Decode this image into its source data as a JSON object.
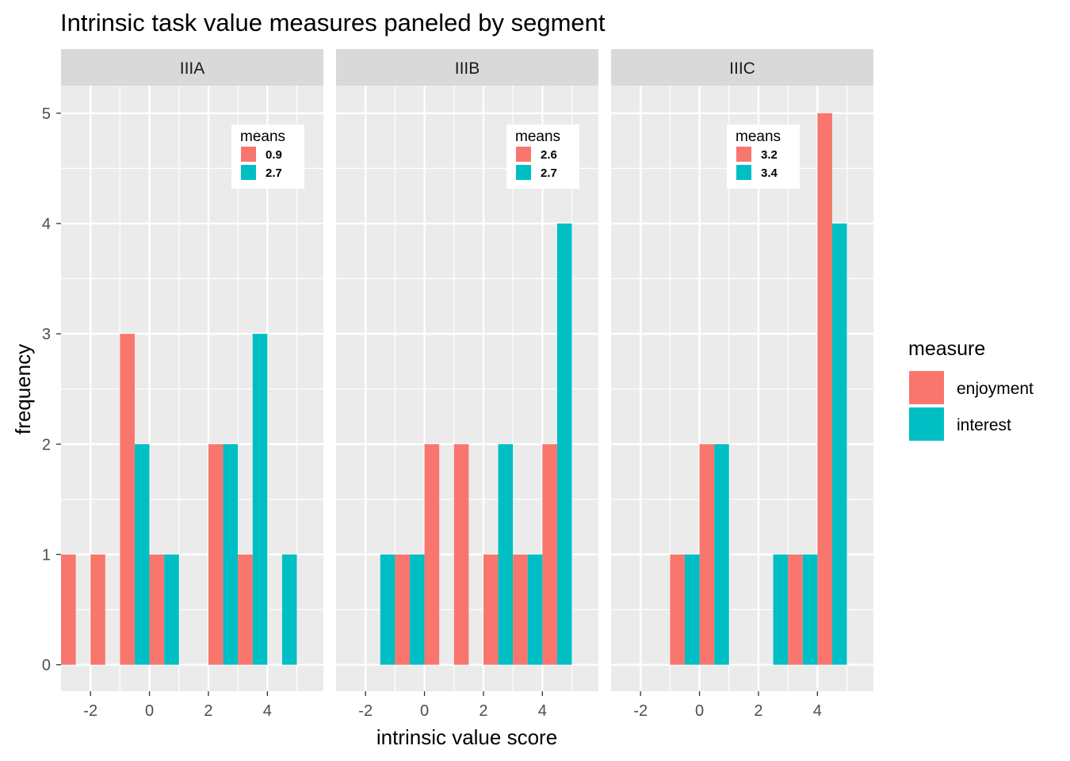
{
  "chart_data": {
    "type": "bar",
    "title": "Intrinsic task value measures paneled by segment",
    "xlabel": "intrinsic value score",
    "ylabel": "frequency",
    "x": [
      -2.5,
      -1.5,
      -0.5,
      0.5,
      1.5,
      2.5,
      3.5,
      4.5,
      5.5
    ],
    "xlim": [
      -3.0,
      5.9
    ],
    "ylim": [
      -0.24,
      5.25
    ],
    "x_ticks": [
      -2,
      0,
      2,
      4
    ],
    "y_ticks": [
      0,
      1,
      2,
      3,
      4,
      5
    ],
    "grid": true,
    "legend": {
      "title": "measure",
      "placement": "right",
      "entries": [
        {
          "name": "enjoyment",
          "color": "#F8766D"
        },
        {
          "name": "interest",
          "color": "#00BFC4"
        }
      ]
    },
    "panels": [
      {
        "label": "IIIA",
        "means": {
          "title": "means",
          "enjoyment": "0.9",
          "interest": "2.7"
        },
        "series": [
          {
            "name": "enjoyment",
            "values": [
              1,
              1,
              3,
              1,
              0,
              2,
              1,
              0,
              0
            ]
          },
          {
            "name": "interest",
            "values": [
              0,
              0,
              2,
              1,
              0,
              2,
              3,
              1,
              0
            ]
          }
        ]
      },
      {
        "label": "IIIB",
        "means": {
          "title": "means",
          "enjoyment": "2.6",
          "interest": "2.7"
        },
        "series": [
          {
            "name": "enjoyment",
            "values": [
              0,
              0,
              1,
              2,
              2,
              1,
              1,
              2,
              0
            ]
          },
          {
            "name": "interest",
            "values": [
              0,
              1,
              1,
              0,
              0,
              2,
              1,
              4,
              0
            ]
          }
        ]
      },
      {
        "label": "IIIC",
        "means": {
          "title": "means",
          "enjoyment": "3.2",
          "interest": "3.4"
        },
        "series": [
          {
            "name": "enjoyment",
            "values": [
              0,
              0,
              1,
              2,
              0,
              0,
              1,
              5,
              0
            ]
          },
          {
            "name": "interest",
            "values": [
              0,
              0,
              1,
              2,
              0,
              1,
              1,
              4,
              0
            ]
          }
        ]
      }
    ]
  },
  "colors": {
    "enjoyment": "#F8766D",
    "interest": "#00BFC4",
    "panel_bg": "#EBEBEB",
    "strip_bg": "#D9D9D9",
    "grid": "#FFFFFF",
    "text": "#4D4D4D"
  }
}
